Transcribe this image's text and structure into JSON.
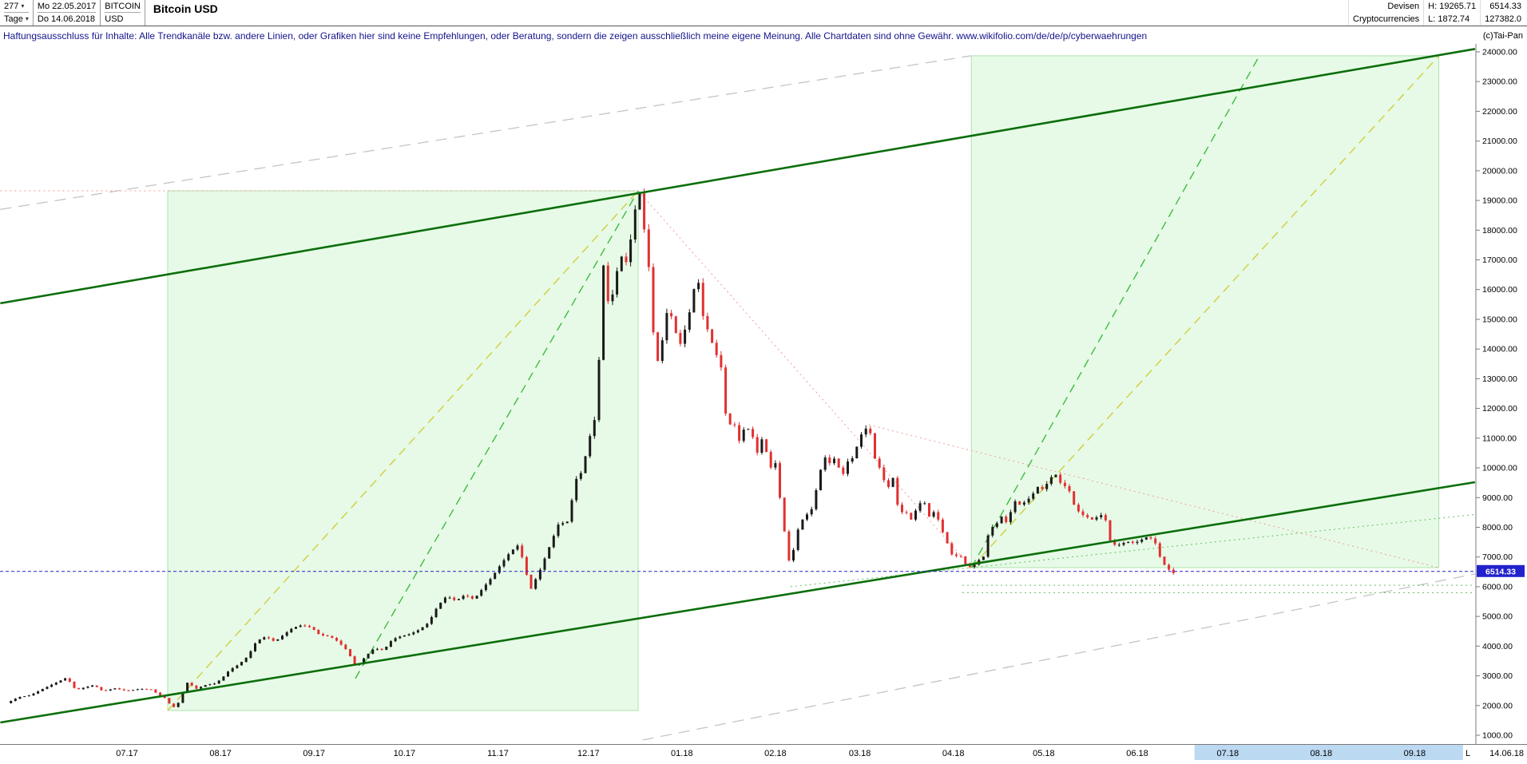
{
  "header": {
    "bars_count": "277",
    "period": "Tage",
    "date_from": "Mo 22.05.2017",
    "date_to": "Do 14.06.2018",
    "symbol": "BITCOIN",
    "currency": "USD",
    "title": "Bitcoin USD",
    "category_line1": "Devisen",
    "category_line2": "Cryptocurrencies",
    "high_label": "H: 19265.71",
    "low_label": "L: 1872.74",
    "last_price_text": "6514.33",
    "volume_text": "127382.0"
  },
  "icons": {
    "dropdown_caret": "▾"
  },
  "disclaimer": {
    "text": "Haftungsausschluss für Inhalte: Alle Trendkanäle bzw. andere Linien, oder Grafiken hier sind keine Empfehlungen, oder Beratung, sondern die zeigen ausschließlich meine eigene Meinung. Alle Chartdaten sind ohne Gewähr.  www.wikifolio.com/de/de/p/cyberwaehrungen",
    "copyright": "(c)Tai-Pan"
  },
  "chart_data": {
    "type": "candlestick",
    "title": "Bitcoin USD",
    "instrument": "BITCOIN / USD",
    "timeframe": "Tage",
    "range_start": "22.05.2017",
    "range_end": "14.06.2018",
    "period_high": 19265.71,
    "period_low": 1872.74,
    "last_price": 6514.33,
    "y_axis": {
      "min": 1000,
      "max": 24000,
      "step": 1000
    },
    "x_axis": {
      "months": [
        {
          "label": "07.17",
          "day": 40
        },
        {
          "label": "08.17",
          "day": 71
        },
        {
          "label": "09.17",
          "day": 102
        },
        {
          "label": "10.17",
          "day": 132
        },
        {
          "label": "11.17",
          "day": 163
        },
        {
          "label": "12.17",
          "day": 193
        },
        {
          "label": "01.18",
          "day": 224
        },
        {
          "label": "02.18",
          "day": 255
        },
        {
          "label": "03.18",
          "day": 283
        },
        {
          "label": "04.18",
          "day": 314
        },
        {
          "label": "05.18",
          "day": 344
        },
        {
          "label": "06.18",
          "day": 375
        },
        {
          "label": "07.18",
          "day": 405
        },
        {
          "label": "08.18",
          "day": 436
        },
        {
          "label": "09.18",
          "day": 467
        }
      ],
      "future_highlight": {
        "from_day": 394,
        "to_day": 483
      },
      "l_marker": "L",
      "last_label": "14.06.18"
    },
    "price_path": [
      [
        0,
        2080
      ],
      [
        4,
        2280
      ],
      [
        8,
        2350
      ],
      [
        12,
        2560
      ],
      [
        16,
        2750
      ],
      [
        20,
        2940
      ],
      [
        23,
        2520
      ],
      [
        26,
        2610
      ],
      [
        29,
        2690
      ],
      [
        32,
        2480
      ],
      [
        36,
        2580
      ],
      [
        40,
        2490
      ],
      [
        44,
        2560
      ],
      [
        48,
        2540
      ],
      [
        51,
        2330
      ],
      [
        53,
        2230
      ],
      [
        55,
        1905
      ],
      [
        57,
        2090
      ],
      [
        60,
        2770
      ],
      [
        63,
        2570
      ],
      [
        66,
        2690
      ],
      [
        69,
        2740
      ],
      [
        71,
        2870
      ],
      [
        74,
        3200
      ],
      [
        77,
        3380
      ],
      [
        80,
        3650
      ],
      [
        83,
        4180
      ],
      [
        86,
        4320
      ],
      [
        89,
        4150
      ],
      [
        92,
        4390
      ],
      [
        95,
        4620
      ],
      [
        98,
        4710
      ],
      [
        101,
        4630
      ],
      [
        104,
        4370
      ],
      [
        107,
        4340
      ],
      [
        110,
        4150
      ],
      [
        113,
        3850
      ],
      [
        116,
        3270
      ],
      [
        119,
        3650
      ],
      [
        122,
        3930
      ],
      [
        125,
        3860
      ],
      [
        128,
        4230
      ],
      [
        131,
        4340
      ],
      [
        134,
        4410
      ],
      [
        137,
        4560
      ],
      [
        140,
        4790
      ],
      [
        143,
        5350
      ],
      [
        146,
        5690
      ],
      [
        149,
        5520
      ],
      [
        152,
        5730
      ],
      [
        155,
        5570
      ],
      [
        158,
        5950
      ],
      [
        161,
        6320
      ],
      [
        164,
        6760
      ],
      [
        167,
        7160
      ],
      [
        170,
        7430
      ],
      [
        172,
        6560
      ],
      [
        174,
        5930
      ],
      [
        177,
        6570
      ],
      [
        180,
        7330
      ],
      [
        183,
        8090
      ],
      [
        186,
        8190
      ],
      [
        189,
        9630
      ],
      [
        191,
        9890
      ],
      [
        193,
        10890
      ],
      [
        195,
        11610
      ],
      [
        197,
        14310
      ],
      [
        198,
        16810
      ],
      [
        200,
        15210
      ],
      [
        202,
        16460
      ],
      [
        204,
        17110
      ],
      [
        206,
        16860
      ],
      [
        208,
        18510
      ],
      [
        210,
        19265
      ],
      [
        212,
        17610
      ],
      [
        214,
        15910
      ],
      [
        215,
        13210
      ],
      [
        217,
        13990
      ],
      [
        219,
        15210
      ],
      [
        221,
        15060
      ],
      [
        223,
        14020
      ],
      [
        225,
        14650
      ],
      [
        227,
        15430
      ],
      [
        229,
        16600
      ],
      [
        231,
        15110
      ],
      [
        234,
        14210
      ],
      [
        237,
        13380
      ],
      [
        239,
        11310
      ],
      [
        241,
        11610
      ],
      [
        243,
        10910
      ],
      [
        245,
        11410
      ],
      [
        247,
        11210
      ],
      [
        249,
        10510
      ],
      [
        251,
        11110
      ],
      [
        253,
        9960
      ],
      [
        255,
        10160
      ],
      [
        257,
        8610
      ],
      [
        259,
        7110
      ],
      [
        260,
        6660
      ],
      [
        262,
        7810
      ],
      [
        264,
        8260
      ],
      [
        267,
        8610
      ],
      [
        269,
        9460
      ],
      [
        271,
        10410
      ],
      [
        273,
        10160
      ],
      [
        275,
        10360
      ],
      [
        277,
        9660
      ],
      [
        279,
        10210
      ],
      [
        281,
        10360
      ],
      [
        283,
        11060
      ],
      [
        286,
        11450
      ],
      [
        288,
        10310
      ],
      [
        290,
        9910
      ],
      [
        292,
        9260
      ],
      [
        294,
        9660
      ],
      [
        296,
        8460
      ],
      [
        298,
        8560
      ],
      [
        300,
        8260
      ],
      [
        302,
        8660
      ],
      [
        304,
        8960
      ],
      [
        306,
        8360
      ],
      [
        308,
        8560
      ],
      [
        310,
        7960
      ],
      [
        312,
        7460
      ],
      [
        314,
        6960
      ],
      [
        316,
        7110
      ],
      [
        318,
        6760
      ],
      [
        320,
        6630
      ],
      [
        322,
        6860
      ],
      [
        324,
        7010
      ],
      [
        326,
        7960
      ],
      [
        328,
        8060
      ],
      [
        330,
        8360
      ],
      [
        332,
        8110
      ],
      [
        334,
        8910
      ],
      [
        336,
        8760
      ],
      [
        338,
        8860
      ],
      [
        340,
        9060
      ],
      [
        342,
        9360
      ],
      [
        344,
        9260
      ],
      [
        346,
        9660
      ],
      [
        348,
        9770
      ],
      [
        350,
        9410
      ],
      [
        352,
        9360
      ],
      [
        354,
        8760
      ],
      [
        356,
        8460
      ],
      [
        358,
        8360
      ],
      [
        360,
        8260
      ],
      [
        362,
        8360
      ],
      [
        364,
        8460
      ],
      [
        366,
        7560
      ],
      [
        368,
        7360
      ],
      [
        370,
        7460
      ],
      [
        372,
        7510
      ],
      [
        374,
        7460
      ],
      [
        376,
        7560
      ],
      [
        378,
        7660
      ],
      [
        380,
        7610
      ],
      [
        381,
        7460
      ],
      [
        383,
        6860
      ],
      [
        385,
        6610
      ],
      [
        387,
        6460
      ],
      [
        388,
        6514.33
      ]
    ],
    "trend_channel": [
      {
        "d1": -2,
        "p1": 15540,
        "d2": 487,
        "p2": 24100
      },
      {
        "d1": -2,
        "p1": 1430,
        "d2": 487,
        "p2": 9518
      }
    ],
    "boxes": [
      {
        "d1": 53.5,
        "p1": 1833,
        "d2": 209.5,
        "p2": 19326
      },
      {
        "d1": 320,
        "p1": 6643,
        "d2": 475,
        "p2": 23869
      }
    ],
    "yellow_dashed": [
      {
        "d1": 53.5,
        "p1": 1833,
        "d2": 209.5,
        "p2": 19326
      },
      {
        "d1": 320,
        "p1": 6643,
        "d2": 475,
        "p2": 23869
      }
    ],
    "green_dashed": [
      {
        "d1": 115.7,
        "p1": 2907,
        "d2": 209.5,
        "p2": 19326
      },
      {
        "d1": 320,
        "p1": 6643,
        "d2": 415.5,
        "p2": 23869
      }
    ],
    "red_dotted": [
      {
        "d1": 209.5,
        "p1": 19326,
        "d2": 320,
        "p2": 6643
      },
      {
        "d1": 286,
        "p1": 11450,
        "d2": 475,
        "p2": 6640
      },
      {
        "d1": -2,
        "p1": 19326,
        "d2": 209.5,
        "p2": 19326
      }
    ],
    "gray_dashed": [
      {
        "d1": -2,
        "p1": 18700,
        "d2": 320,
        "p2": 23870
      },
      {
        "d1": 211,
        "p1": 840,
        "d2": 487,
        "p2": 6430
      }
    ],
    "green_dotted": [
      {
        "d1": 317,
        "p1": 6050,
        "d2": 487,
        "p2": 6050
      },
      {
        "d1": 317,
        "p1": 5800,
        "d2": 487,
        "p2": 5800
      },
      {
        "d1": 260,
        "p1": 6000,
        "d2": 487,
        "p2": 8430
      }
    ],
    "colors": {
      "dark_green": "#0b6e0b",
      "box_fill": "rgba(160,235,160,0.25)",
      "box_stroke": "#aee3ae",
      "yellow": "#cfcf3a",
      "green_dash": "#3dbd3d",
      "green_dot": "#63c063",
      "red_dot": "#f49999",
      "gray": "#c4c4c4",
      "blue": "#2222cc",
      "candle_up": "#1a1a1a",
      "candle_down": "#e03131",
      "future_highlight": "#bcd9f2",
      "axis": "#7a7a7a"
    }
  }
}
